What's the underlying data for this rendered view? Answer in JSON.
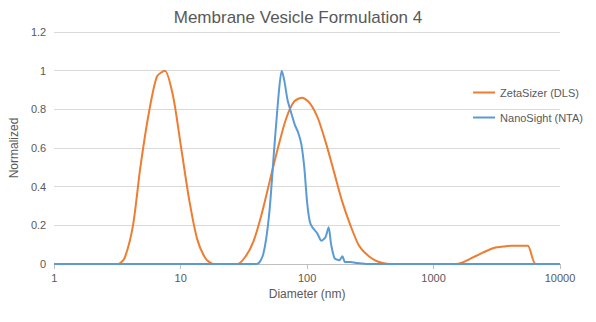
{
  "chart_data": {
    "type": "line",
    "title": "Membrane Vesicle Formulation 4",
    "xlabel": "Diameter (nm)",
    "ylabel": "Normalized",
    "log": "x",
    "grid": true,
    "legend": "right",
    "xlim": [
      1,
      10000
    ],
    "xticks": [
      1,
      10,
      100,
      1000,
      10000
    ],
    "ylim": [
      0,
      1.2
    ],
    "yticks": [
      0,
      0.2,
      0.4,
      0.6,
      0.8,
      1,
      1.2
    ],
    "series": [
      {
        "name": "ZetaSizer (DLS)",
        "color": "#ed7d31",
        "x": [
          1,
          2,
          3.2,
          3.6,
          4.2,
          4.8,
          5.6,
          6.5,
          7.5,
          8.7,
          10.1,
          11.7,
          13.5,
          15.7,
          18.2,
          24,
          28.2,
          32.7,
          37.8,
          43.8,
          50.7,
          58.8,
          68.1,
          78.8,
          91.3,
          105.7,
          122.4,
          141.8,
          164.2,
          190.1,
          220.2,
          255,
          295.3,
          342,
          396.1,
          458.7,
          1000,
          1484,
          1718,
          1990,
          2305,
          2669,
          3091,
          3580,
          4145,
          4801,
          5560,
          6439,
          10000
        ],
        "values": [
          0,
          0,
          0,
          0.03,
          0.2,
          0.5,
          0.78,
          0.97,
          1.0,
          0.87,
          0.6,
          0.33,
          0.13,
          0.03,
          0,
          0,
          0,
          0.04,
          0.12,
          0.26,
          0.43,
          0.6,
          0.75,
          0.84,
          0.86,
          0.83,
          0.75,
          0.62,
          0.47,
          0.32,
          0.2,
          0.1,
          0.05,
          0.02,
          0.005,
          0,
          0,
          0,
          0.01,
          0.03,
          0.05,
          0.07,
          0.085,
          0.09,
          0.095,
          0.095,
          0.095,
          0,
          0
        ]
      },
      {
        "name": "NanoSight (NTA)",
        "color": "#5b9bd5",
        "x": [
          1,
          10,
          40,
          45,
          50,
          55,
          60,
          63,
          66,
          70,
          75,
          80,
          85,
          90,
          95,
          100,
          105,
          110,
          120,
          130,
          140,
          148,
          155,
          165,
          180,
          190,
          200,
          220,
          250,
          300,
          1000,
          10000
        ],
        "values": [
          0,
          0,
          0,
          0.05,
          0.25,
          0.6,
          0.9,
          1.0,
          0.95,
          0.85,
          0.78,
          0.72,
          0.68,
          0.62,
          0.5,
          0.32,
          0.22,
          0.19,
          0.16,
          0.12,
          0.14,
          0.19,
          0.1,
          0.03,
          0.02,
          0.04,
          0.01,
          0.01,
          0.005,
          0,
          0,
          0
        ]
      }
    ]
  }
}
